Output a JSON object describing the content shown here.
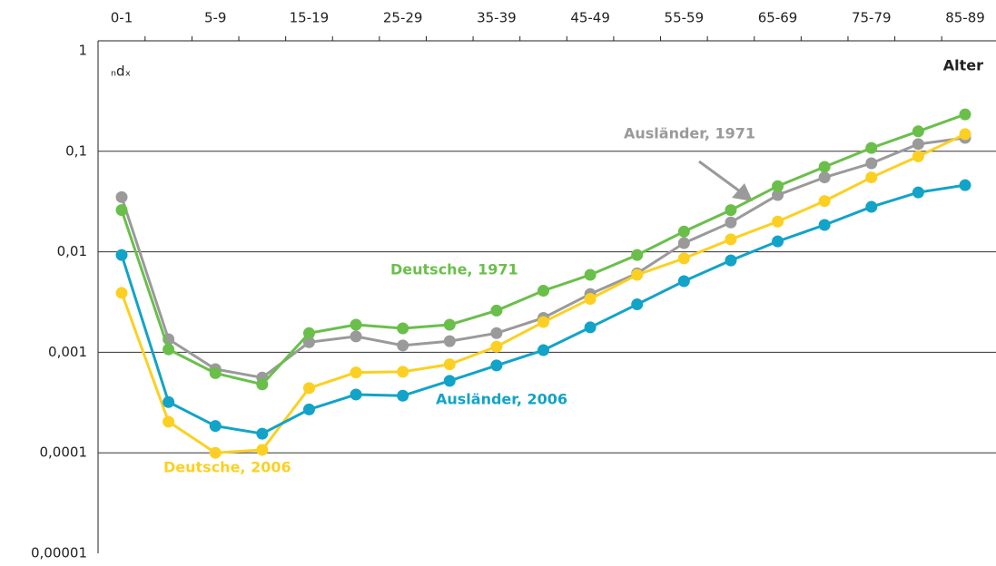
{
  "chart_data": {
    "type": "line",
    "y_label": "ₙdₓ",
    "x_label": "Alter",
    "log_y": true,
    "grid": true,
    "categories": [
      "0-1",
      null,
      "5-9",
      null,
      "15-19",
      null,
      "25-29",
      null,
      "35-39",
      null,
      "45-49",
      null,
      "55-59",
      null,
      "65-69",
      null,
      "75-79",
      null,
      "85-89"
    ],
    "ylim": [
      1e-05,
      1
    ],
    "yticks": [
      1,
      {
        "value": 0.1,
        "label": "0,1"
      },
      {
        "value": 0.01,
        "label": "0,01"
      },
      {
        "value": 0.001,
        "label": "0,001"
      },
      {
        "value": 0.0001,
        "label": "0,0001"
      },
      {
        "value": 1e-05,
        "label": "0,00001"
      }
    ],
    "series": [
      {
        "name": "Ausländer, 1971",
        "color": "#9a9a9a",
        "values": [
          0.035,
          0.00135,
          0.00068,
          0.00056,
          0.00126,
          0.00144,
          0.00117,
          0.00129,
          0.00155,
          0.0022,
          0.0038,
          0.0061,
          0.0122,
          0.0196,
          0.0367,
          0.055,
          0.076,
          0.118,
          0.136
        ]
      },
      {
        "name": "Deutsche, 1971",
        "color": "#6abf4b",
        "values": [
          0.026,
          0.00107,
          0.00062,
          0.00048,
          0.00155,
          0.00188,
          0.00173,
          0.00188,
          0.0026,
          0.0041,
          0.0059,
          0.0093,
          0.0159,
          0.026,
          0.045,
          0.07,
          0.108,
          0.158,
          0.233
        ]
      },
      {
        "name": "Deutsche, 2006",
        "color": "#fcd022",
        "values": [
          0.0039,
          0.000204,
          0.0001,
          0.000107,
          0.00044,
          0.00063,
          0.00064,
          0.00076,
          0.00114,
          0.002,
          0.0034,
          0.0059,
          0.0086,
          0.0133,
          0.02,
          0.032,
          0.055,
          0.089,
          0.148
        ]
      },
      {
        "name": "Ausländer, 2006",
        "color": "#12a3c8",
        "values": [
          0.0093,
          0.00032,
          0.000185,
          0.000155,
          0.00027,
          0.00038,
          0.00037,
          0.00052,
          0.00074,
          0.00105,
          0.00177,
          0.003,
          0.0051,
          0.0082,
          0.0127,
          0.0185,
          0.028,
          0.039,
          0.046
        ]
      }
    ]
  }
}
